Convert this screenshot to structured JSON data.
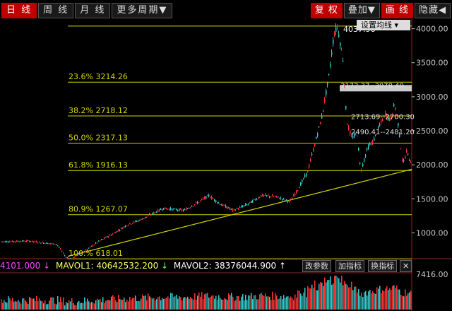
{
  "toolbar": {
    "tabs": [
      "日 线",
      "周 线",
      "月 线",
      "更多周期▼"
    ],
    "right": [
      "复 权",
      "叠加▼",
      "画 线",
      "隐藏◀"
    ],
    "set_ma": "设置均线 ▾"
  },
  "volume_bar": {
    "price": "4101.000",
    "arrow1": "↓",
    "mavol1": "MAVOL1: 40642532.200",
    "arrow2": "↓",
    "mavol2": "MAVOL2: 38376044.900",
    "arrow3": "↑",
    "btn1": "改参数",
    "btn2": "加指标",
    "btn3": "换指标",
    "close": "✕"
  },
  "colors": {
    "up": "#ff3333",
    "down": "#33cccc",
    "fib": "#d4d400",
    "axis": "#c8c8c8",
    "accent": "#c00000"
  },
  "chart_data": {
    "type": "candlestick",
    "yticks": [
      1000,
      1500,
      2000,
      2500,
      3000,
      3500,
      4000
    ],
    "ytick_labels": [
      "1000.00",
      "1500.00",
      "2000.00",
      "2500.00",
      "3000.00",
      "3500.00",
      "4000.00"
    ],
    "ylim": [
      620,
      4110
    ],
    "fib_levels": [
      {
        "label": "23.6%  3214.26",
        "value": 3214.26
      },
      {
        "label": "38.2%  2718.12",
        "value": 2718.12
      },
      {
        "label": "50.0%  2317.13",
        "value": 2317.13
      },
      {
        "label": "61.8%  1916.13",
        "value": 1916.13
      },
      {
        "label": "80.9%  1267.07",
        "value": 1267.07
      },
      {
        "label": "100.%  618.01",
        "value": 618.01
      }
    ],
    "top_level": {
      "label": "4037.96",
      "value": 4037.96
    },
    "annotations": [
      {
        "label": "3172.37--3078.40",
        "value": 3172.37
      },
      {
        "label": "2713.69--2700.30",
        "value": 2713.69
      },
      {
        "label": "2490.41--2481.20",
        "value": 2490.41
      }
    ],
    "trendline": {
      "from": 655,
      "to": 1935
    },
    "path": [
      [
        0,
        870
      ],
      [
        40,
        880
      ],
      [
        80,
        830
      ],
      [
        93,
        640
      ],
      [
        100,
        618
      ],
      [
        120,
        740
      ],
      [
        140,
        880
      ],
      [
        160,
        990
      ],
      [
        180,
        1120
      ],
      [
        200,
        1200
      ],
      [
        230,
        1360
      ],
      [
        260,
        1330
      ],
      [
        280,
        1450
      ],
      [
        295,
        1550
      ],
      [
        310,
        1430
      ],
      [
        330,
        1330
      ],
      [
        350,
        1420
      ],
      [
        370,
        1550
      ],
      [
        390,
        1530
      ],
      [
        410,
        1460
      ],
      [
        420,
        1620
      ],
      [
        435,
        1900
      ],
      [
        445,
        2300
      ],
      [
        455,
        2700
      ],
      [
        465,
        3300
      ],
      [
        472,
        3900
      ],
      [
        477,
        4037.96
      ],
      [
        485,
        3550
      ],
      [
        490,
        2650
      ],
      [
        497,
        2400
      ],
      [
        505,
        2450
      ],
      [
        510,
        1900
      ],
      [
        520,
        2250
      ],
      [
        528,
        2350
      ],
      [
        538,
        2600
      ],
      [
        545,
        2750
      ],
      [
        552,
        2650
      ],
      [
        558,
        2900
      ],
      [
        563,
        2600
      ],
      [
        570,
        2000
      ],
      [
        575,
        2200
      ],
      [
        580,
        2050
      ]
    ],
    "volume_label": "7416.00"
  }
}
